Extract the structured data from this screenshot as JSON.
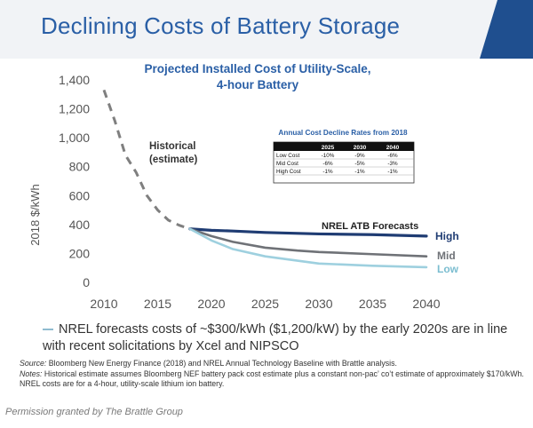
{
  "slide_title": "Declining Costs of Battery Storage",
  "bullet_text": "NREL forecasts costs of ~$300/kWh ($1,200/kW) by the early 2020s are in line with recent solicitations by Xcel and NIPSCO",
  "source_label": "Source:",
  "source_text": "Bloomberg New Energy Finance (2018) and NREL Annual Technology Baseline with Brattle analysis.",
  "notes_label": "Notes:",
  "notes_text": "Historical estimate assumes Bloomberg NEF battery pack cost estimate plus a constant non-pac’ co’t estimate of approximately $170/kWh. NREL costs are for a 4-hour, utility-scale lithium ion battery.",
  "permission_text": "Permission granted by The Brattle Group",
  "colors": {
    "title_blue": "#2a5fa6",
    "high": "#1f3c73",
    "mid": "#6f7277",
    "low": "#9ed0df",
    "historical": "#7f7f7f"
  },
  "chart_data": {
    "type": "line",
    "title_line1": "Projected Installed Cost of Utility-Scale,",
    "title_line2": "4-hour Battery",
    "ylabel": "2018 $/kWh",
    "xlabel": "",
    "xlim": [
      2010,
      2040
    ],
    "ylim": [
      0,
      1400
    ],
    "x_ticks": [
      2010,
      2015,
      2020,
      2025,
      2030,
      2035,
      2040
    ],
    "y_ticks": [
      0,
      200,
      400,
      600,
      800,
      1000,
      1200,
      1400
    ],
    "y_tick_labels": [
      "0",
      "200",
      "400",
      "600",
      "800",
      "1,000",
      "1,200",
      "1,400"
    ],
    "grid": false,
    "series": [
      {
        "name": "Historical\n(estimate)",
        "style": "dashed",
        "color": "#7f7f7f",
        "x": [
          2010,
          2011,
          2012,
          2013,
          2014,
          2015,
          2016,
          2017,
          2018
        ],
        "y": [
          1330,
          1120,
          880,
          760,
          600,
          500,
          430,
          395,
          370
        ]
      },
      {
        "name": "High",
        "style": "solid",
        "color": "#1f3c73",
        "x": [
          2018,
          2020,
          2022,
          2025,
          2030,
          2035,
          2040
        ],
        "y": [
          370,
          360,
          355,
          345,
          335,
          330,
          320
        ]
      },
      {
        "name": "Mid",
        "style": "solid",
        "color": "#6f7277",
        "x": [
          2018,
          2020,
          2022,
          2025,
          2028,
          2030,
          2035,
          2040
        ],
        "y": [
          370,
          320,
          280,
          240,
          220,
          210,
          195,
          180
        ]
      },
      {
        "name": "Low",
        "style": "solid",
        "color": "#9ed0df",
        "x": [
          2018,
          2020,
          2022,
          2025,
          2028,
          2030,
          2035,
          2040
        ],
        "y": [
          370,
          290,
          230,
          180,
          150,
          130,
          115,
          105
        ]
      }
    ],
    "annotations": {
      "historical": [
        "Historical",
        "(estimate)"
      ],
      "forecast": "NREL ATB Forecasts"
    },
    "inset_table": {
      "title": "Annual Cost Decline Rates from 2018",
      "columns": [
        "",
        "2025",
        "2030",
        "2040"
      ],
      "rows": [
        [
          "Low Cost",
          "-10%",
          "-9%",
          "-6%"
        ],
        [
          "Mid Cost",
          "-6%",
          "-5%",
          "-3%"
        ],
        [
          "High Cost",
          "-1%",
          "-1%",
          "-1%"
        ]
      ]
    }
  }
}
